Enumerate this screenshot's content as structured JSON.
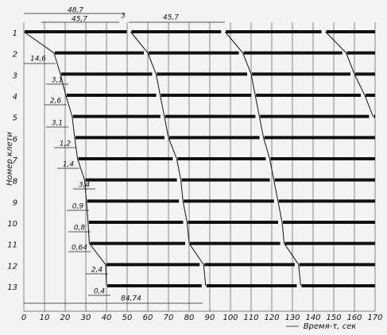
{
  "chart_data": {
    "type": "timeline",
    "y_label": "Номер клети",
    "x_label": "Время-τ, сек",
    "categories": [
      "1",
      "2",
      "3",
      "4",
      "5",
      "6",
      "7",
      "8",
      "9",
      "10",
      "11",
      "12",
      "13"
    ],
    "series": [
      {
        "values": [
          0,
          14.6,
          17.7,
          20.3,
          23.4,
          24.6,
          26,
          29.4,
          30.3,
          31.1,
          31.7,
          39.6,
          40
        ]
      },
      {
        "values": [
          51.7,
          60,
          64,
          66,
          68,
          70,
          74,
          76,
          77,
          79,
          80,
          87,
          88
        ]
      },
      {
        "values": [
          97.4,
          106,
          110,
          112,
          114,
          116,
          119,
          121,
          123,
          125,
          126,
          133,
          134
        ]
      },
      {
        "values": [
          146,
          156,
          160,
          165,
          169,
          null,
          null,
          null,
          null,
          null,
          null,
          null,
          null
        ]
      }
    ],
    "color": "#111111",
    "xlim": [
      0,
      170
    ],
    "xticks": [
      0,
      10,
      20,
      30,
      40,
      50,
      60,
      70,
      80,
      90,
      100,
      110,
      120,
      130,
      140,
      150,
      160,
      170
    ],
    "grid": true,
    "annotations": [
      "48,7",
      "45,7",
      "3",
      "45,7",
      "14,6",
      "3,1",
      "2,6",
      "3,1",
      "1,2",
      "1,4",
      "3,4",
      "0,9",
      "0,8",
      "0,64",
      "2,4",
      "0,4",
      "84,74"
    ]
  }
}
